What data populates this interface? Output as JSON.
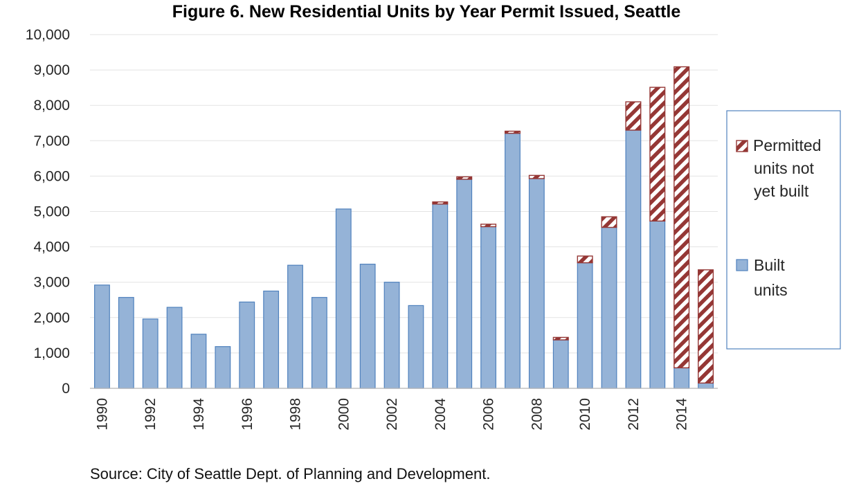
{
  "chart_data": {
    "type": "bar",
    "stacked": true,
    "title": "Figure 6.  New Residential Units by Year Permit Issued, Seattle",
    "xlabel": "",
    "ylabel": "",
    "ylim": [
      0,
      10000
    ],
    "y_ticks": [
      "0",
      "1,000",
      "2,000",
      "3,000",
      "4,000",
      "5,000",
      "6,000",
      "7,000",
      "8,000",
      "9,000",
      "10,000"
    ],
    "categories": [
      "1990",
      "1991",
      "1992",
      "1993",
      "1994",
      "1995",
      "1996",
      "1997",
      "1998",
      "1999",
      "2000",
      "2001",
      "2002",
      "2003",
      "2004",
      "2005",
      "2006",
      "2007",
      "2008",
      "2009",
      "2010",
      "2011",
      "2012",
      "2013",
      "2014",
      "2015"
    ],
    "x_tick_labels": [
      "1990",
      "",
      "1992",
      "",
      "1994",
      "",
      "1996",
      "",
      "1998",
      "",
      "2000",
      "",
      "2002",
      "",
      "2004",
      "",
      "2006",
      "",
      "2008",
      "",
      "2010",
      "",
      "2012",
      "",
      "2014",
      ""
    ],
    "series": [
      {
        "name_lines": [
          "Built",
          "units"
        ],
        "color": "#95b3d7",
        "edge": "#4f81bd",
        "values": [
          2920,
          2570,
          1960,
          2290,
          1530,
          1180,
          2440,
          2750,
          3480,
          2570,
          5070,
          3510,
          3000,
          2340,
          5210,
          5910,
          4570,
          7210,
          5930,
          1370,
          3550,
          4550,
          7300,
          4730,
          580,
          150
        ]
      },
      {
        "name_lines": [
          "Permitted",
          "units not",
          "yet built"
        ],
        "color": "#953735",
        "pattern": "diagonal-hatch",
        "values": [
          0,
          0,
          0,
          0,
          0,
          0,
          0,
          0,
          0,
          0,
          0,
          0,
          0,
          0,
          60,
          70,
          70,
          60,
          90,
          70,
          190,
          300,
          800,
          3780,
          8510,
          3200
        ]
      }
    ],
    "grid": true,
    "legend_position": "right"
  },
  "source": "Source: City of Seattle Dept. of Planning and Development."
}
